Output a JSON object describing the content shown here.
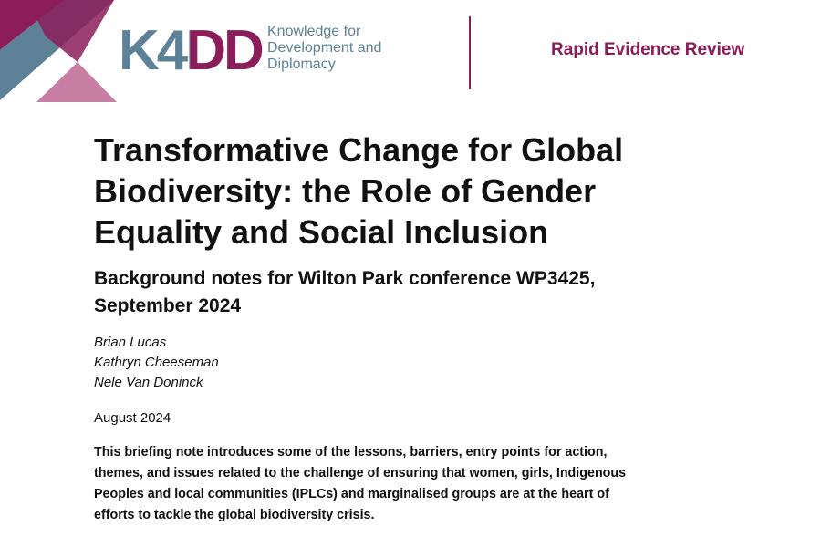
{
  "header": {
    "logo": "K4DD",
    "tagline": [
      "Knowledge for",
      "Development and",
      "Diplomacy"
    ],
    "series": "Rapid Evidence Review"
  },
  "title": [
    "Transformative Change for Global",
    "Biodiversity: the Role of Gender",
    "Equality and Social Inclusion"
  ],
  "subtitle": [
    "Background notes for Wilton Park conference WP3425,",
    "September 2024"
  ],
  "authors": [
    "Brian Lucas",
    "Kathryn Cheeseman",
    "Nele Van Doninck"
  ],
  "date": "August 2024",
  "summary": [
    "This briefing note introduces some of the lessons, barriers, entry points for action,",
    "themes, and issues related to the challenge of ensuring that women, girls, Indigenous",
    "Peoples and local communities (IPLCs) and marginalised groups are at the heart of",
    "efforts to tackle the global biodiversity crisis."
  ]
}
